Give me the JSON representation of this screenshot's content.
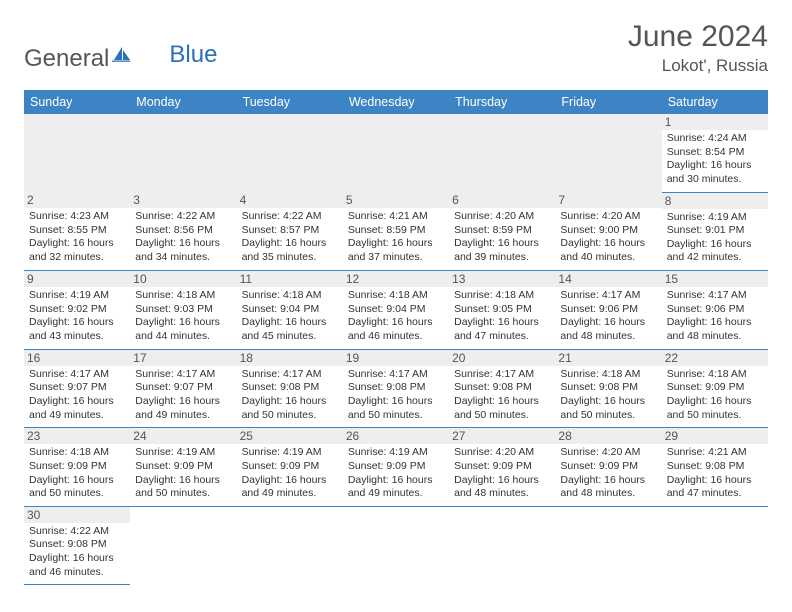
{
  "logo": {
    "general": "General",
    "blue": "Blue"
  },
  "header": {
    "month": "June 2024",
    "location": "Lokot', Russia"
  },
  "colors": {
    "header_bg": "#3d84c6",
    "header_text": "#ffffff",
    "daynum_bg": "#eeeeee",
    "border": "#3d84c6",
    "logo_gray": "#555555",
    "logo_blue": "#2b70b8"
  },
  "weekdays": [
    "Sunday",
    "Monday",
    "Tuesday",
    "Wednesday",
    "Thursday",
    "Friday",
    "Saturday"
  ],
  "weeks": [
    [
      null,
      null,
      null,
      null,
      null,
      null,
      {
        "n": "1",
        "sr": "4:24 AM",
        "ss": "8:54 PM",
        "dl": "16 hours and 30 minutes."
      }
    ],
    [
      {
        "n": "2",
        "sr": "4:23 AM",
        "ss": "8:55 PM",
        "dl": "16 hours and 32 minutes."
      },
      {
        "n": "3",
        "sr": "4:22 AM",
        "ss": "8:56 PM",
        "dl": "16 hours and 34 minutes."
      },
      {
        "n": "4",
        "sr": "4:22 AM",
        "ss": "8:57 PM",
        "dl": "16 hours and 35 minutes."
      },
      {
        "n": "5",
        "sr": "4:21 AM",
        "ss": "8:59 PM",
        "dl": "16 hours and 37 minutes."
      },
      {
        "n": "6",
        "sr": "4:20 AM",
        "ss": "8:59 PM",
        "dl": "16 hours and 39 minutes."
      },
      {
        "n": "7",
        "sr": "4:20 AM",
        "ss": "9:00 PM",
        "dl": "16 hours and 40 minutes."
      },
      {
        "n": "8",
        "sr": "4:19 AM",
        "ss": "9:01 PM",
        "dl": "16 hours and 42 minutes."
      }
    ],
    [
      {
        "n": "9",
        "sr": "4:19 AM",
        "ss": "9:02 PM",
        "dl": "16 hours and 43 minutes."
      },
      {
        "n": "10",
        "sr": "4:18 AM",
        "ss": "9:03 PM",
        "dl": "16 hours and 44 minutes."
      },
      {
        "n": "11",
        "sr": "4:18 AM",
        "ss": "9:04 PM",
        "dl": "16 hours and 45 minutes."
      },
      {
        "n": "12",
        "sr": "4:18 AM",
        "ss": "9:04 PM",
        "dl": "16 hours and 46 minutes."
      },
      {
        "n": "13",
        "sr": "4:18 AM",
        "ss": "9:05 PM",
        "dl": "16 hours and 47 minutes."
      },
      {
        "n": "14",
        "sr": "4:17 AM",
        "ss": "9:06 PM",
        "dl": "16 hours and 48 minutes."
      },
      {
        "n": "15",
        "sr": "4:17 AM",
        "ss": "9:06 PM",
        "dl": "16 hours and 48 minutes."
      }
    ],
    [
      {
        "n": "16",
        "sr": "4:17 AM",
        "ss": "9:07 PM",
        "dl": "16 hours and 49 minutes."
      },
      {
        "n": "17",
        "sr": "4:17 AM",
        "ss": "9:07 PM",
        "dl": "16 hours and 49 minutes."
      },
      {
        "n": "18",
        "sr": "4:17 AM",
        "ss": "9:08 PM",
        "dl": "16 hours and 50 minutes."
      },
      {
        "n": "19",
        "sr": "4:17 AM",
        "ss": "9:08 PM",
        "dl": "16 hours and 50 minutes."
      },
      {
        "n": "20",
        "sr": "4:17 AM",
        "ss": "9:08 PM",
        "dl": "16 hours and 50 minutes."
      },
      {
        "n": "21",
        "sr": "4:18 AM",
        "ss": "9:08 PM",
        "dl": "16 hours and 50 minutes."
      },
      {
        "n": "22",
        "sr": "4:18 AM",
        "ss": "9:09 PM",
        "dl": "16 hours and 50 minutes."
      }
    ],
    [
      {
        "n": "23",
        "sr": "4:18 AM",
        "ss": "9:09 PM",
        "dl": "16 hours and 50 minutes."
      },
      {
        "n": "24",
        "sr": "4:19 AM",
        "ss": "9:09 PM",
        "dl": "16 hours and 50 minutes."
      },
      {
        "n": "25",
        "sr": "4:19 AM",
        "ss": "9:09 PM",
        "dl": "16 hours and 49 minutes."
      },
      {
        "n": "26",
        "sr": "4:19 AM",
        "ss": "9:09 PM",
        "dl": "16 hours and 49 minutes."
      },
      {
        "n": "27",
        "sr": "4:20 AM",
        "ss": "9:09 PM",
        "dl": "16 hours and 48 minutes."
      },
      {
        "n": "28",
        "sr": "4:20 AM",
        "ss": "9:09 PM",
        "dl": "16 hours and 48 minutes."
      },
      {
        "n": "29",
        "sr": "4:21 AM",
        "ss": "9:08 PM",
        "dl": "16 hours and 47 minutes."
      }
    ],
    [
      {
        "n": "30",
        "sr": "4:22 AM",
        "ss": "9:08 PM",
        "dl": "16 hours and 46 minutes."
      },
      null,
      null,
      null,
      null,
      null,
      null
    ]
  ],
  "labels": {
    "sunrise": "Sunrise: ",
    "sunset": "Sunset: ",
    "daylight": "Daylight: "
  }
}
